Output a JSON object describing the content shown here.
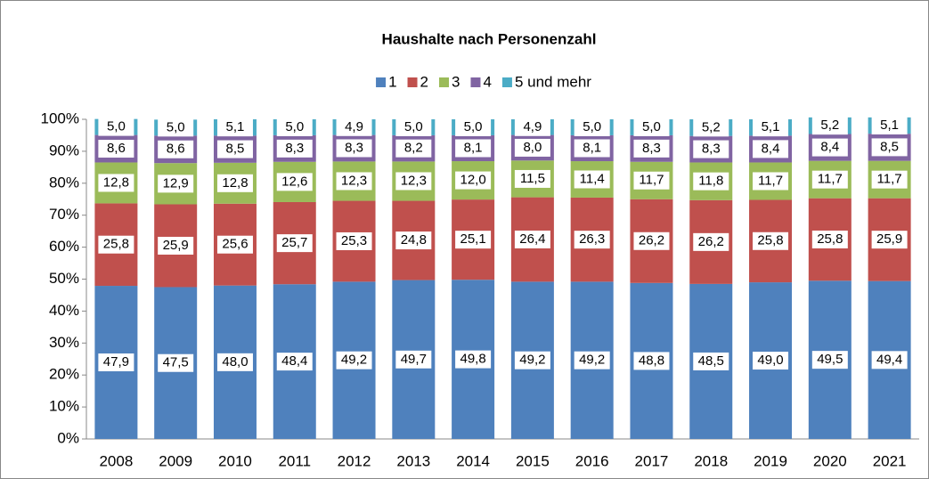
{
  "chart_data": {
    "type": "stacked_bar",
    "title": "Haushalte nach Personenzahl",
    "categories": [
      "2008",
      "2009",
      "2010",
      "2011",
      "2012",
      "2013",
      "2014",
      "2015",
      "2016",
      "2017",
      "2018",
      "2019",
      "2020",
      "2021"
    ],
    "series": [
      {
        "name": "1",
        "color": "#4f81bd",
        "values": [
          47.9,
          47.5,
          48.0,
          48.4,
          49.2,
          49.7,
          49.8,
          49.2,
          49.2,
          48.8,
          48.5,
          49.0,
          49.5,
          49.4
        ],
        "value_labels": [
          "47,9",
          "47,5",
          "48,0",
          "48,4",
          "49,2",
          "49,7",
          "49,8",
          "49,2",
          "49,2",
          "48,8",
          "48,5",
          "49,0",
          "49,5",
          "49,4"
        ]
      },
      {
        "name": "2",
        "color": "#c0504d",
        "values": [
          25.8,
          25.9,
          25.6,
          25.7,
          25.3,
          24.8,
          25.1,
          26.4,
          26.3,
          26.2,
          26.2,
          25.8,
          25.8,
          25.9
        ],
        "value_labels": [
          "25,8",
          "25,9",
          "25,6",
          "25,7",
          "25,3",
          "24,8",
          "25,1",
          "26,4",
          "26,3",
          "26,2",
          "26,2",
          "25,8",
          "25,8",
          "25,9"
        ]
      },
      {
        "name": "3",
        "color": "#9bbb59",
        "values": [
          12.8,
          12.9,
          12.8,
          12.6,
          12.3,
          12.3,
          12.0,
          11.5,
          11.4,
          11.7,
          11.8,
          11.7,
          11.7,
          11.7
        ],
        "value_labels": [
          "12,8",
          "12,9",
          "12,8",
          "12,6",
          "12,3",
          "12,3",
          "12,0",
          "11,5",
          "11,4",
          "11,7",
          "11,8",
          "11,7",
          "11,7",
          "11,7"
        ]
      },
      {
        "name": "4",
        "color": "#8064a2",
        "values": [
          8.6,
          8.6,
          8.5,
          8.3,
          8.3,
          8.2,
          8.1,
          8.0,
          8.1,
          8.3,
          8.3,
          8.4,
          8.4,
          8.5
        ],
        "value_labels": [
          "8,6",
          "8,6",
          "8,5",
          "8,3",
          "8,3",
          "8,2",
          "8,1",
          "8,0",
          "8,1",
          "8,3",
          "8,3",
          "8,4",
          "8,4",
          "8,5"
        ]
      },
      {
        "name": "5 und mehr",
        "color": "#4bacc6",
        "values": [
          5.0,
          5.0,
          5.1,
          5.0,
          4.9,
          5.0,
          5.0,
          4.9,
          5.0,
          5.0,
          5.2,
          5.1,
          5.2,
          5.1
        ],
        "value_labels": [
          "5,0",
          "5,0",
          "5,1",
          "5,0",
          "4,9",
          "5,0",
          "5,0",
          "4,9",
          "5,0",
          "5,0",
          "5,2",
          "5,1",
          "5,2",
          "5,1"
        ]
      }
    ],
    "ylim": [
      0,
      100
    ],
    "yticks": [
      {
        "value": 0,
        "label": "0%"
      },
      {
        "value": 10,
        "label": "10%"
      },
      {
        "value": 20,
        "label": "20%"
      },
      {
        "value": 30,
        "label": "30%"
      },
      {
        "value": 40,
        "label": "40%"
      },
      {
        "value": 50,
        "label": "50%"
      },
      {
        "value": 60,
        "label": "60%"
      },
      {
        "value": 70,
        "label": "70%"
      },
      {
        "value": 80,
        "label": "80%"
      },
      {
        "value": 90,
        "label": "90%"
      },
      {
        "value": 100,
        "label": "100%"
      }
    ],
    "legend": "top"
  }
}
